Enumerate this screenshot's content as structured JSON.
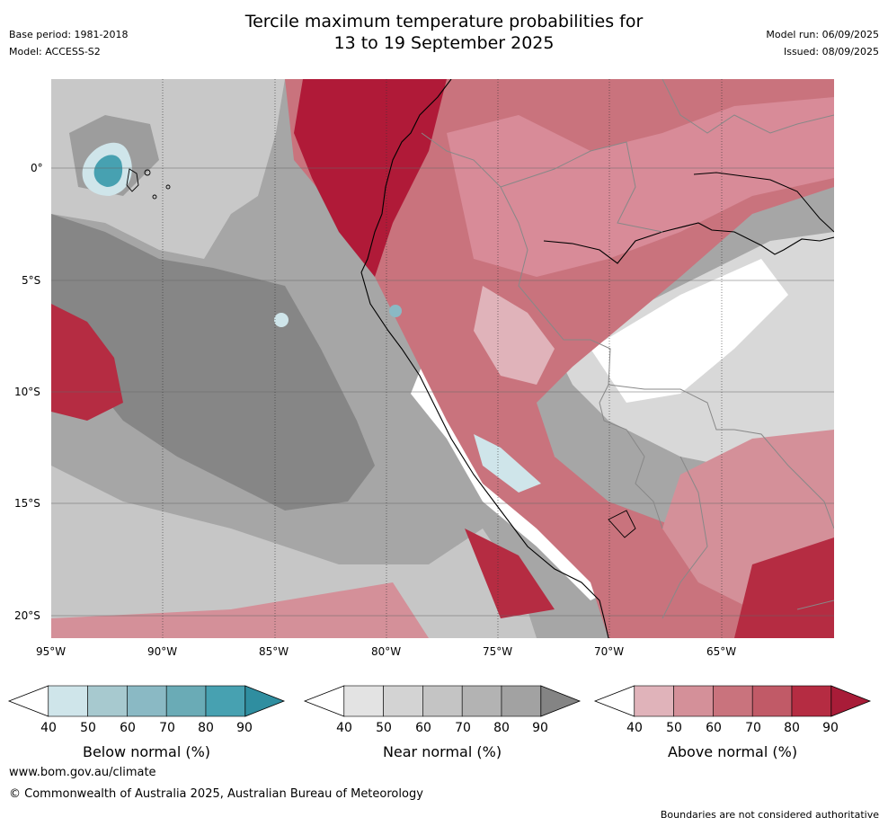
{
  "header": {
    "title_line1": "Tercile maximum temperature probabilities for",
    "title_line2": "13 to 19 September 2025",
    "base_period": "Base period: 1981-2018",
    "model": "Model: ACCESS-S2",
    "model_run": "Model run: 06/09/2025",
    "issued": "Issued: 08/09/2025"
  },
  "map": {
    "lat_labels": [
      "0°",
      "5°S",
      "10°S",
      "15°S",
      "20°S"
    ],
    "lon_labels": [
      "95°W",
      "90°W",
      "85°W",
      "80°W",
      "75°W",
      "70°W",
      "65°W"
    ]
  },
  "colorbars": [
    {
      "label": "Below normal (%)",
      "ticks": [
        "40",
        "50",
        "60",
        "70",
        "80",
        "90"
      ],
      "colors": [
        "#ffffff",
        "#cfe5ea",
        "#a7c9cf",
        "#8ab9c4",
        "#6aabb6",
        "#47a1b1",
        "#2f8ea0"
      ]
    },
    {
      "label": "Near normal (%)",
      "ticks": [
        "40",
        "50",
        "60",
        "70",
        "80",
        "90"
      ],
      "colors": [
        "#ffffff",
        "#e3e3e3",
        "#d3d3d3",
        "#c4c4c4",
        "#b3b3b3",
        "#a2a2a2",
        "#848484"
      ]
    },
    {
      "label": "Above normal (%)",
      "ticks": [
        "40",
        "50",
        "60",
        "70",
        "80",
        "90"
      ],
      "colors": [
        "#ffffff",
        "#e0b3ba",
        "#d49099",
        "#c9737d",
        "#c15a67",
        "#b52c42",
        "#a81c38"
      ]
    }
  ],
  "footer": {
    "website": "www.bom.gov.au/climate",
    "copyright": "© Commonwealth of Australia 2025, Australian Bureau of Meteorology",
    "disclaimer": "Boundaries are not considered authoritative"
  }
}
